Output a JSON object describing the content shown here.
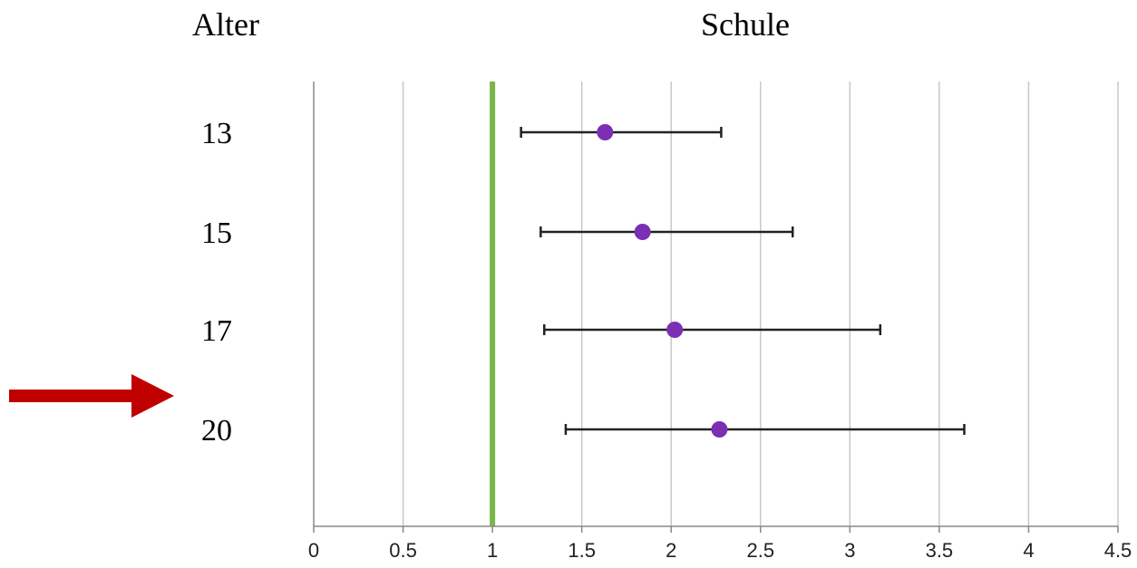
{
  "header": {
    "age_label": "Alter",
    "school_label": "Schule"
  },
  "chart_data": {
    "type": "scatter",
    "subtype": "forest-plot",
    "categories": [
      "13",
      "15",
      "17",
      "20"
    ],
    "values": [
      1.63,
      1.84,
      2.02,
      2.27
    ],
    "ci_low": [
      1.16,
      1.27,
      1.29,
      1.41
    ],
    "ci_high": [
      2.28,
      2.68,
      3.17,
      3.64
    ],
    "x_ticks": [
      "0",
      "0.5",
      "1",
      "1.5",
      "2",
      "2.5",
      "3",
      "3.5",
      "4",
      "4.5"
    ],
    "xlim": [
      0,
      4.5
    ],
    "reference_value": 1,
    "grid": "vertical",
    "colors": {
      "point": "#7b2fb5",
      "reference_line": "#7ab648",
      "error_bar": "#222222",
      "grid": "#c8c8c8",
      "arrow": "#c00000"
    }
  },
  "annotation": {
    "arrow_icon": "right-arrow-icon",
    "arrow_points_to": "20"
  }
}
